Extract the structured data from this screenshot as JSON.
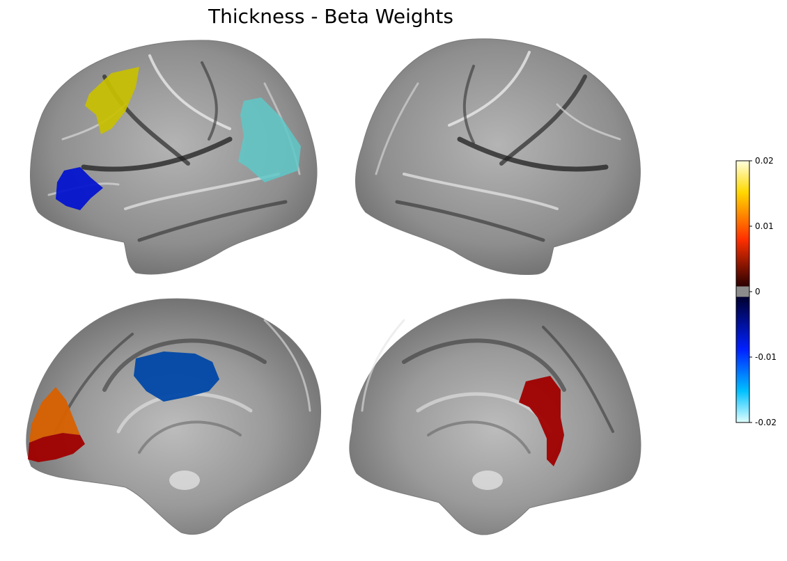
{
  "title": "Thickness -  Beta Weights",
  "colorbar": {
    "range": [
      -0.02,
      0.02
    ],
    "ticks": [
      {
        "value": 0.02,
        "label": "0.02"
      },
      {
        "value": 0.01,
        "label": "0.01"
      },
      {
        "value": 0,
        "label": "0"
      },
      {
        "value": -0.01,
        "label": "-0.01"
      },
      {
        "value": -0.02,
        "label": "-0.02"
      }
    ],
    "colors": {
      "pos_max": "#ffffe0",
      "pos_high": "#ffd800",
      "pos_mid": "#ff3000",
      "pos_low": "#2a0000",
      "zero": "#8c8c8c",
      "neg_low": "#000030",
      "neg_mid": "#0020ff",
      "neg_high": "#00c0ff",
      "neg_max": "#e0ffff"
    }
  },
  "surfaces": {
    "base_color": "#8a8a8a",
    "views": [
      {
        "hemisphere": "left",
        "view": "lateral"
      },
      {
        "hemisphere": "right",
        "view": "lateral"
      },
      {
        "hemisphere": "left",
        "view": "medial"
      },
      {
        "hemisphere": "right",
        "view": "medial"
      }
    ]
  },
  "regions": [
    {
      "view": "left-lateral",
      "color": "#c8c000",
      "approx_value": 0.016
    },
    {
      "view": "left-lateral",
      "color": "#5fc8c8",
      "approx_value": -0.015
    },
    {
      "view": "left-lateral",
      "color": "#0010d0",
      "approx_value": -0.009
    },
    {
      "view": "left-medial",
      "color": "#0048a8",
      "approx_value": -0.011
    },
    {
      "view": "left-medial",
      "color": "#d86000",
      "approx_value": 0.012
    },
    {
      "view": "left-medial",
      "color": "#a00000",
      "approx_value": 0.006
    },
    {
      "view": "right-medial",
      "color": "#a00000",
      "approx_value": 0.006
    }
  ]
}
